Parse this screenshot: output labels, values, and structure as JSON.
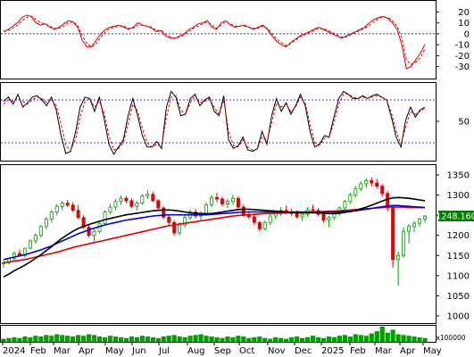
{
  "colors": {
    "up_candle": "#00a000",
    "down_candle": "#e00000",
    "ma_short": "#000000",
    "ma_mid": "#0000dd",
    "ma_long": "#e00000",
    "osc_line": "#e00000",
    "ref_line": "#3333cc",
    "price_box_bg": "#008000",
    "price_box_text": "#ffffff",
    "volume_bar": "#00a000"
  },
  "chart_data": [
    {
      "type": "line",
      "panel": "oscillator",
      "ylim": [
        -36,
        26
      ],
      "y_ticks": [
        "20",
        "10",
        "0",
        "-10",
        "-20",
        "-30"
      ],
      "reference_lines": [
        0
      ],
      "series": [
        {
          "style": "solid",
          "values": [
            2,
            4,
            7,
            10,
            15,
            17,
            16,
            10,
            8,
            9,
            6,
            4,
            6,
            9,
            12,
            11,
            6,
            -6,
            -12,
            -12,
            -6,
            0,
            4,
            6,
            7,
            8,
            6,
            4,
            6,
            10,
            8,
            7,
            5,
            2,
            3,
            -2,
            -4,
            -4,
            -2,
            0,
            4,
            6,
            9,
            10,
            12,
            6,
            4,
            10,
            12,
            8,
            6,
            7,
            8,
            6,
            4,
            6,
            8,
            4,
            -2,
            -7,
            -10,
            -12,
            -8,
            -5,
            -2,
            0,
            2,
            4,
            6,
            4,
            2,
            0,
            -2,
            -4,
            -2,
            0,
            2,
            4,
            6,
            10,
            13,
            15,
            16,
            14,
            10,
            4,
            -10,
            -32,
            -30,
            -24,
            -18,
            -10
          ]
        },
        {
          "style": "dashed",
          "values": [
            2,
            3,
            5,
            8,
            12,
            15,
            16,
            13,
            10,
            9,
            7,
            5,
            5,
            7,
            10,
            11,
            8,
            -2,
            -9,
            -12,
            -9,
            -3,
            2,
            5,
            6,
            7,
            7,
            5,
            5,
            8,
            8,
            7,
            6,
            3,
            3,
            0,
            -3,
            -4,
            -3,
            -1,
            2,
            5,
            7,
            9,
            11,
            8,
            5,
            8,
            11,
            9,
            7,
            7,
            7,
            6,
            5,
            5,
            7,
            5,
            0,
            -5,
            -8,
            -11,
            -9,
            -6,
            -3,
            -1,
            1,
            3,
            5,
            5,
            3,
            1,
            -1,
            -3,
            -3,
            -1,
            1,
            3,
            5,
            8,
            11,
            14,
            15,
            15,
            12,
            7,
            -4,
            -24,
            -28,
            -26,
            -22,
            -14
          ]
        }
      ]
    },
    {
      "type": "line",
      "panel": "stochastic",
      "ylim": [
        0,
        100
      ],
      "y_ticks": [
        "50"
      ],
      "reference_lines": [
        80,
        20
      ],
      "series": [
        {
          "style": "solid",
          "values": [
            78,
            84,
            74,
            88,
            70,
            76,
            84,
            86,
            80,
            72,
            84,
            66,
            30,
            5,
            8,
            34,
            70,
            84,
            82,
            64,
            84,
            54,
            18,
            4,
            14,
            24,
            58,
            82,
            58,
            30,
            14,
            14,
            22,
            12,
            70,
            92,
            84,
            58,
            60,
            82,
            88,
            72,
            80,
            84,
            64,
            58,
            86,
            24,
            12,
            16,
            28,
            10,
            8,
            12,
            36,
            18,
            58,
            82,
            64,
            76,
            60,
            72,
            88,
            72,
            36,
            14,
            18,
            30,
            28,
            56,
            82,
            92,
            88,
            82,
            82,
            86,
            82,
            86,
            88,
            84,
            80,
            56,
            28,
            14,
            52,
            70,
            56,
            66,
            70
          ]
        },
        {
          "style": "dashed",
          "values": [
            74,
            80,
            78,
            82,
            78,
            74,
            80,
            84,
            82,
            76,
            80,
            72,
            46,
            16,
            10,
            24,
            56,
            78,
            82,
            70,
            78,
            62,
            30,
            10,
            12,
            20,
            46,
            74,
            64,
            40,
            20,
            14,
            18,
            14,
            56,
            84,
            86,
            66,
            60,
            76,
            86,
            76,
            78,
            82,
            70,
            60,
            80,
            36,
            16,
            14,
            24,
            14,
            10,
            11,
            28,
            22,
            48,
            76,
            70,
            74,
            64,
            70,
            84,
            76,
            46,
            20,
            17,
            26,
            28,
            48,
            74,
            88,
            88,
            84,
            82,
            84,
            82,
            84,
            86,
            84,
            80,
            62,
            36,
            18,
            42,
            64,
            60,
            64,
            68
          ]
        }
      ]
    },
    {
      "type": "candlestick",
      "panel": "price",
      "ylim": [
        1000,
        1350
      ],
      "y_ticks": [
        "1350",
        "1300",
        "1250",
        "1200",
        "1150",
        "1100",
        "1050",
        "1000"
      ],
      "last_price_label": "1248.160",
      "ohlc": [
        [
          1130,
          1138,
          1120,
          1132
        ],
        [
          1132,
          1145,
          1128,
          1142
        ],
        [
          1142,
          1160,
          1138,
          1155
        ],
        [
          1155,
          1165,
          1148,
          1150
        ],
        [
          1150,
          1170,
          1145,
          1168
        ],
        [
          1168,
          1190,
          1165,
          1186
        ],
        [
          1186,
          1205,
          1180,
          1200
        ],
        [
          1200,
          1225,
          1195,
          1222
        ],
        [
          1222,
          1245,
          1215,
          1240
        ],
        [
          1240,
          1262,
          1232,
          1258
        ],
        [
          1258,
          1278,
          1250,
          1272
        ],
        [
          1272,
          1285,
          1262,
          1280
        ],
        [
          1280,
          1288,
          1270,
          1275
        ],
        [
          1275,
          1282,
          1258,
          1262
        ],
        [
          1262,
          1275,
          1240,
          1244
        ],
        [
          1244,
          1250,
          1215,
          1220
        ],
        [
          1220,
          1228,
          1195,
          1200
        ],
        [
          1200,
          1215,
          1185,
          1210
        ],
        [
          1210,
          1235,
          1205,
          1230
        ],
        [
          1230,
          1262,
          1226,
          1258
        ],
        [
          1258,
          1278,
          1252,
          1270
        ],
        [
          1270,
          1290,
          1262,
          1284
        ],
        [
          1284,
          1300,
          1276,
          1292
        ],
        [
          1292,
          1298,
          1280,
          1286
        ],
        [
          1286,
          1292,
          1268,
          1272
        ],
        [
          1272,
          1285,
          1262,
          1280
        ],
        [
          1280,
          1302,
          1276,
          1298
        ],
        [
          1298,
          1312,
          1290,
          1302
        ],
        [
          1302,
          1308,
          1282,
          1286
        ],
        [
          1286,
          1290,
          1262,
          1268
        ],
        [
          1268,
          1272,
          1240,
          1245
        ],
        [
          1245,
          1252,
          1225,
          1232
        ],
        [
          1232,
          1238,
          1200,
          1206
        ],
        [
          1206,
          1232,
          1200,
          1226
        ],
        [
          1226,
          1250,
          1220,
          1244
        ],
        [
          1244,
          1264,
          1238,
          1258
        ],
        [
          1258,
          1266,
          1242,
          1248
        ],
        [
          1248,
          1260,
          1236,
          1254
        ],
        [
          1254,
          1282,
          1250,
          1276
        ],
        [
          1276,
          1300,
          1270,
          1294
        ],
        [
          1294,
          1306,
          1282,
          1290
        ],
        [
          1290,
          1296,
          1272,
          1278
        ],
        [
          1278,
          1290,
          1268,
          1284
        ],
        [
          1284,
          1300,
          1276,
          1292
        ],
        [
          1292,
          1296,
          1266,
          1270
        ],
        [
          1270,
          1276,
          1246,
          1252
        ],
        [
          1252,
          1260,
          1240,
          1246
        ],
        [
          1246,
          1250,
          1225,
          1232
        ],
        [
          1232,
          1236,
          1210,
          1216
        ],
        [
          1216,
          1236,
          1212,
          1232
        ],
        [
          1232,
          1252,
          1226,
          1248
        ],
        [
          1248,
          1262,
          1240,
          1256
        ],
        [
          1256,
          1270,
          1248,
          1262
        ],
        [
          1262,
          1274,
          1252,
          1258
        ],
        [
          1258,
          1266,
          1248,
          1254
        ],
        [
          1254,
          1262,
          1242,
          1246
        ],
        [
          1246,
          1258,
          1236,
          1252
        ],
        [
          1252,
          1270,
          1246,
          1264
        ],
        [
          1264,
          1276,
          1256,
          1262
        ],
        [
          1262,
          1268,
          1248,
          1252
        ],
        [
          1252,
          1256,
          1232,
          1238
        ],
        [
          1238,
          1248,
          1220,
          1244
        ],
        [
          1244,
          1262,
          1238,
          1256
        ],
        [
          1256,
          1272,
          1250,
          1268
        ],
        [
          1268,
          1288,
          1262,
          1284
        ],
        [
          1284,
          1306,
          1278,
          1300
        ],
        [
          1300,
          1322,
          1294,
          1316
        ],
        [
          1316,
          1334,
          1310,
          1328
        ],
        [
          1328,
          1342,
          1318,
          1336
        ],
        [
          1336,
          1344,
          1322,
          1330
        ],
        [
          1330,
          1340,
          1316,
          1322
        ],
        [
          1322,
          1328,
          1296,
          1304
        ],
        [
          1304,
          1310,
          1260,
          1268
        ],
        [
          1268,
          1274,
          1120,
          1140
        ],
        [
          1140,
          1160,
          1075,
          1150
        ],
        [
          1150,
          1220,
          1145,
          1210
        ],
        [
          1210,
          1228,
          1180,
          1222
        ],
        [
          1222,
          1236,
          1208,
          1230
        ],
        [
          1230,
          1244,
          1222,
          1240
        ],
        [
          1240,
          1250,
          1232,
          1248
        ]
      ],
      "series": [
        {
          "name": "short_ma",
          "values": [
            1097,
            1104,
            1112,
            1119,
            1126,
            1134,
            1143,
            1152,
            1162,
            1172,
            1183,
            1193,
            1202,
            1210,
            1217,
            1222,
            1227,
            1231,
            1235,
            1239,
            1242,
            1245,
            1248,
            1251,
            1253,
            1255,
            1257,
            1259,
            1261,
            1262,
            1263,
            1263,
            1262,
            1260,
            1258,
            1256,
            1255,
            1254,
            1254,
            1254,
            1256,
            1258,
            1260,
            1262,
            1264,
            1265,
            1265,
            1264,
            1263,
            1262,
            1261,
            1260,
            1259,
            1258,
            1257,
            1256,
            1256,
            1256,
            1256,
            1256,
            1255,
            1254,
            1254,
            1255,
            1257,
            1259,
            1262,
            1266,
            1270,
            1275,
            1280,
            1285,
            1290,
            1293,
            1294,
            1293,
            1292,
            1290,
            1288,
            1286
          ]
        },
        {
          "name": "mid_ma",
          "values": [
            1140,
            1143,
            1146,
            1149,
            1152,
            1156,
            1160,
            1164,
            1169,
            1174,
            1180,
            1186,
            1192,
            1198,
            1204,
            1209,
            1214,
            1218,
            1222,
            1226,
            1229,
            1232,
            1235,
            1238,
            1240,
            1242,
            1244,
            1246,
            1248,
            1249,
            1250,
            1251,
            1251,
            1251,
            1251,
            1251,
            1251,
            1251,
            1251,
            1252,
            1253,
            1254,
            1255,
            1256,
            1257,
            1258,
            1258,
            1258,
            1258,
            1258,
            1258,
            1258,
            1258,
            1258,
            1258,
            1258,
            1258,
            1258,
            1258,
            1258,
            1258,
            1258,
            1258,
            1258,
            1259,
            1260,
            1261,
            1263,
            1265,
            1267,
            1269,
            1271,
            1273,
            1274,
            1274,
            1273,
            1272,
            1271,
            1270,
            1269
          ]
        },
        {
          "name": "long_ma",
          "values": [
            1132,
            1134,
            1136,
            1138,
            1140,
            1143,
            1146,
            1149,
            1152,
            1155,
            1158,
            1162,
            1166,
            1170,
            1173,
            1176,
            1179,
            1182,
            1185,
            1188,
            1191,
            1194,
            1197,
            1200,
            1203,
            1206,
            1209,
            1212,
            1215,
            1218,
            1221,
            1224,
            1226,
            1228,
            1230,
            1232,
            1234,
            1236,
            1238,
            1240,
            1242,
            1244,
            1246,
            1248,
            1249,
            1250,
            1251,
            1252,
            1253,
            1254,
            1254,
            1255,
            1255,
            1256,
            1256,
            1257,
            1257,
            1258,
            1258,
            1259,
            1259,
            1260,
            1260,
            1261,
            1262,
            1263,
            1264,
            1265,
            1266,
            1267,
            1268,
            1269,
            1270,
            1270,
            1270,
            1270,
            1269,
            1269,
            1269,
            1269
          ]
        }
      ]
    },
    {
      "type": "bar",
      "panel": "volume",
      "y_unit_label": "x100000",
      "x_tick_labels": [
        "2024",
        "Feb",
        "Mar",
        "Apr",
        "May",
        "Jun",
        "Jul",
        "Aug",
        "Sep",
        "Oct",
        "Nov",
        "Dec",
        "2025",
        "Feb",
        "Mar",
        "Apr",
        "May"
      ],
      "values": [
        4,
        5,
        6,
        5,
        7,
        6,
        8,
        7,
        9,
        8,
        10,
        9,
        8,
        7,
        9,
        8,
        10,
        9,
        7,
        6,
        8,
        7,
        6,
        5,
        7,
        6,
        8,
        7,
        6,
        5,
        7,
        8,
        9,
        7,
        6,
        8,
        9,
        10,
        8,
        7,
        6,
        5,
        7,
        6,
        8,
        7,
        5,
        6,
        7,
        5,
        4,
        6,
        5,
        4,
        6,
        7,
        5,
        6,
        8,
        6,
        5,
        7,
        6,
        8,
        9,
        7,
        10,
        9,
        8,
        11,
        14,
        20,
        12,
        16,
        10,
        9,
        8,
        7,
        6,
        5
      ]
    }
  ]
}
